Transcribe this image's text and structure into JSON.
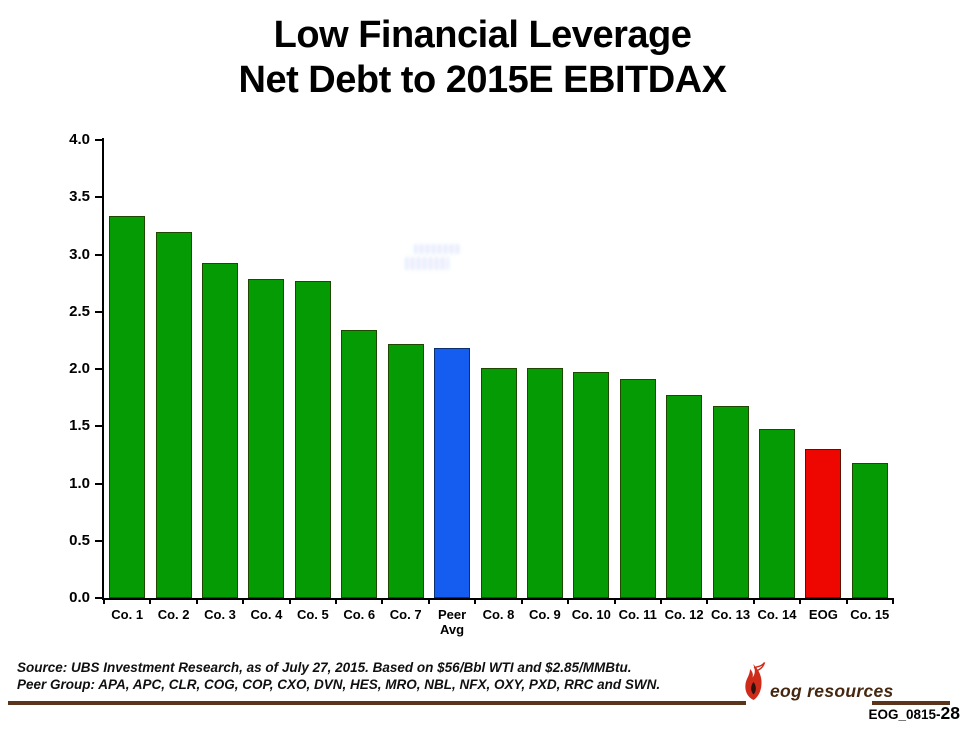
{
  "slide": {
    "title_line1": "Low Financial Leverage",
    "title_line2": "Net Debt to 2015E EBITDAX",
    "footer": {
      "source_line": "Source: UBS Investment Research, as of July 27, 2015. Based on $56/Bbl WTI and $2.85/MMBtu.",
      "peer_group_line": "Peer Group: APA, APC, CLR, COG, COP, CXO, DVN, HES, MRO, NBL, NFX, OXY, PXD, RRC and SWN."
    },
    "brand": {
      "logo_text": "eog resources"
    },
    "slide_code": {
      "prefix": "EOG_0815-",
      "number": "28"
    }
  },
  "colors": {
    "bar_green": "#059B05",
    "bar_blue": "#155CF0",
    "bar_red": "#EE0600",
    "bar_border_green": "#1E4700",
    "bar_border_blue": "#0A2F70",
    "bar_border_red": "#571400",
    "axis_black": "#000000",
    "brand_brown": "#5A341B",
    "logo_text_brown": "#45280F",
    "flame_red": "#CE2B1A",
    "flame_dark": "#2E120D"
  },
  "chart_data": {
    "type": "bar",
    "title": "Low Financial Leverage — Net Debt to 2015E EBITDAX",
    "categories": [
      "Co. 1",
      "Co. 2",
      "Co. 3",
      "Co. 4",
      "Co. 5",
      "Co. 6",
      "Co. 7",
      "Peer\nAvg",
      "Co. 8",
      "Co. 9",
      "Co. 10",
      "Co. 11",
      "Co. 12",
      "Co. 13",
      "Co. 14",
      "EOG",
      "Co. 15"
    ],
    "values": [
      3.34,
      3.2,
      2.93,
      2.79,
      2.77,
      2.34,
      2.22,
      2.18,
      2.01,
      2.01,
      1.97,
      1.91,
      1.77,
      1.68,
      1.48,
      1.3,
      1.18
    ],
    "bar_colors": [
      "green",
      "green",
      "green",
      "green",
      "green",
      "green",
      "green",
      "blue",
      "green",
      "green",
      "green",
      "green",
      "green",
      "green",
      "green",
      "red",
      "green"
    ],
    "xlabel": "",
    "ylabel": "",
    "ylim": [
      0.0,
      4.0
    ],
    "ytick_step": 0.5,
    "ytick_format_decimals": 1,
    "grid": false,
    "legend": "none",
    "highlights": {
      "blue_bar": "Peer Avg",
      "red_bar": "EOG"
    }
  }
}
